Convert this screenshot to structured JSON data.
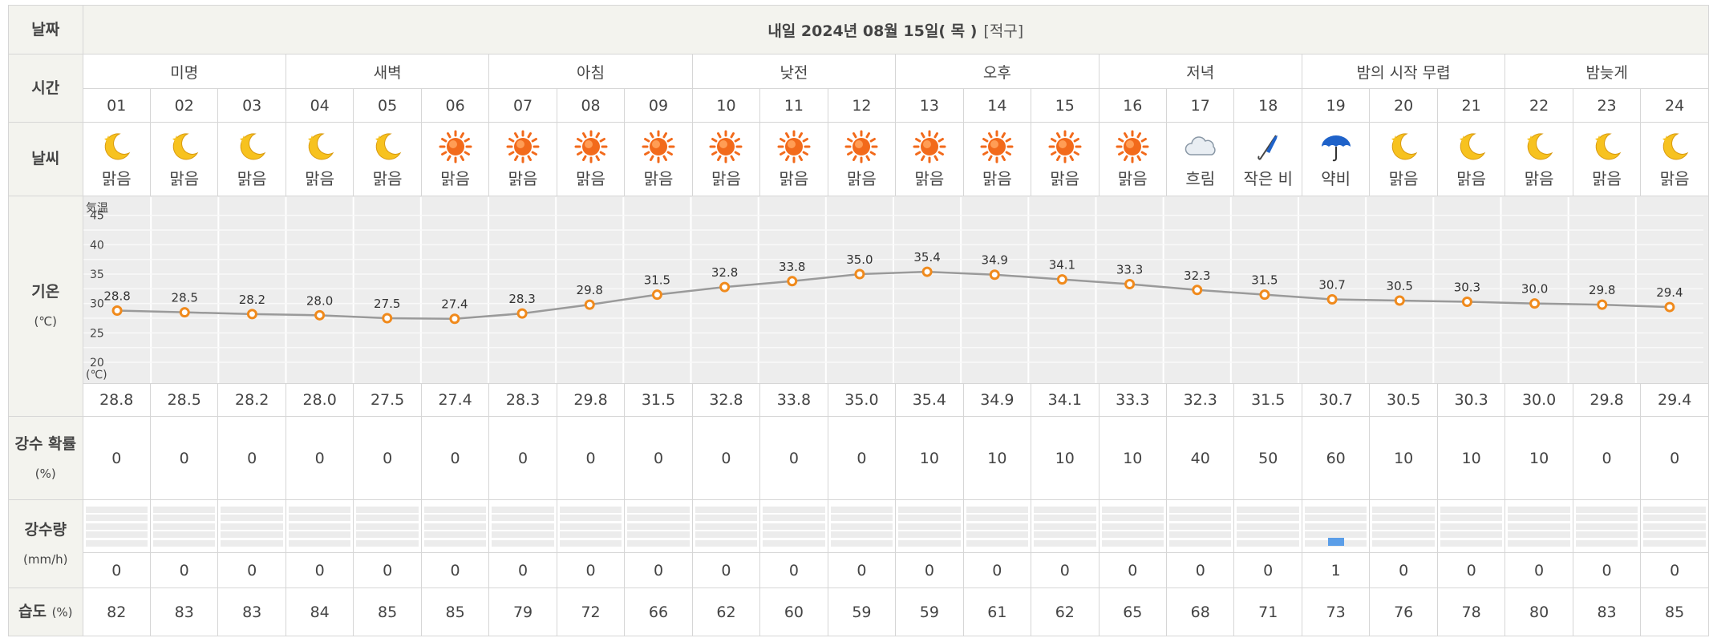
{
  "labels": {
    "date": "날짜",
    "time": "시간",
    "weather": "날씨",
    "temp": "기온",
    "temp_unit": "(℃)",
    "precip_prob": "강수 확률",
    "precip_prob_unit": "(%)",
    "precip_amount": "강수량",
    "precip_amount_unit": "(mm/h)",
    "humidity": "습도",
    "humidity_unit": "(%)"
  },
  "header": {
    "title": "내일 2024년 08월 15일( 목 )",
    "region": "[적구]"
  },
  "periods": [
    {
      "label": "미명"
    },
    {
      "label": "새벽"
    },
    {
      "label": "아침"
    },
    {
      "label": "낮전"
    },
    {
      "label": "오후"
    },
    {
      "label": "저녁"
    },
    {
      "label": "밤의 시작 무렵"
    },
    {
      "label": "밤늦게"
    }
  ],
  "hours": [
    "01",
    "02",
    "03",
    "04",
    "05",
    "06",
    "07",
    "08",
    "09",
    "10",
    "11",
    "12",
    "13",
    "14",
    "15",
    "16",
    "17",
    "18",
    "19",
    "20",
    "21",
    "22",
    "23",
    "24"
  ],
  "weather": [
    {
      "icon": "moon-icon",
      "text": "맑음"
    },
    {
      "icon": "moon-icon",
      "text": "맑음"
    },
    {
      "icon": "moon-icon",
      "text": "맑음"
    },
    {
      "icon": "moon-icon",
      "text": "맑음"
    },
    {
      "icon": "moon-icon",
      "text": "맑음"
    },
    {
      "icon": "sun-icon",
      "text": "맑음"
    },
    {
      "icon": "sun-icon",
      "text": "맑음"
    },
    {
      "icon": "sun-icon",
      "text": "맑음"
    },
    {
      "icon": "sun-icon",
      "text": "맑음"
    },
    {
      "icon": "sun-icon",
      "text": "맑음"
    },
    {
      "icon": "sun-icon",
      "text": "맑음"
    },
    {
      "icon": "sun-icon",
      "text": "맑음"
    },
    {
      "icon": "sun-icon",
      "text": "맑음"
    },
    {
      "icon": "sun-icon",
      "text": "맑음"
    },
    {
      "icon": "sun-icon",
      "text": "맑음"
    },
    {
      "icon": "sun-icon",
      "text": "맑음"
    },
    {
      "icon": "cloud-icon",
      "text": "흐림"
    },
    {
      "icon": "closed-umbrella-icon",
      "text": "작은 비"
    },
    {
      "icon": "umbrella-icon",
      "text": "약비"
    },
    {
      "icon": "moon-icon",
      "text": "맑음"
    },
    {
      "icon": "moon-icon",
      "text": "맑음"
    },
    {
      "icon": "moon-icon",
      "text": "맑음"
    },
    {
      "icon": "moon-icon",
      "text": "맑음"
    },
    {
      "icon": "moon-icon",
      "text": "맑음"
    }
  ],
  "chart_data": {
    "type": "line",
    "ylabel": "気温",
    "yunit": "(℃)",
    "ylim": [
      17,
      47
    ],
    "yticks": [
      20,
      25,
      30,
      35,
      40,
      45
    ],
    "x": [
      "01",
      "02",
      "03",
      "04",
      "05",
      "06",
      "07",
      "08",
      "09",
      "10",
      "11",
      "12",
      "13",
      "14",
      "15",
      "16",
      "17",
      "18",
      "19",
      "20",
      "21",
      "22",
      "23",
      "24"
    ],
    "series": [
      {
        "values": [
          28.8,
          28.5,
          28.2,
          28.0,
          27.5,
          27.4,
          28.3,
          29.8,
          31.5,
          32.8,
          33.8,
          35.0,
          35.4,
          34.9,
          34.1,
          33.3,
          32.3,
          31.5,
          30.7,
          30.5,
          30.3,
          30.0,
          29.8,
          29.4
        ]
      }
    ],
    "point_labels": [
      "28.8",
      "28.5",
      "28.2",
      "28.0",
      "27.5",
      "27.4",
      "28.3",
      "29.8",
      "31.5",
      "32.8",
      "33.8",
      "35.0",
      "35.4",
      "34.9",
      "34.1",
      "33.3",
      "32.3",
      "31.5",
      "30.7",
      "30.5",
      "30.3",
      "30.0",
      "29.8",
      "29.4"
    ],
    "grid": true,
    "line_color": "#9a9a9a",
    "marker_color": "#f08a1c"
  },
  "temps": [
    "28.8",
    "28.5",
    "28.2",
    "28.0",
    "27.5",
    "27.4",
    "28.3",
    "29.8",
    "31.5",
    "32.8",
    "33.8",
    "35.0",
    "35.4",
    "34.9",
    "34.1",
    "33.3",
    "32.3",
    "31.5",
    "30.7",
    "30.5",
    "30.3",
    "30.0",
    "29.8",
    "29.4"
  ],
  "precip_prob": [
    "0",
    "0",
    "0",
    "0",
    "0",
    "0",
    "0",
    "0",
    "0",
    "0",
    "0",
    "0",
    "10",
    "10",
    "10",
    "10",
    "40",
    "50",
    "60",
    "10",
    "10",
    "10",
    "0",
    "0"
  ],
  "precip_amount": [
    "0",
    "0",
    "0",
    "0",
    "0",
    "0",
    "0",
    "0",
    "0",
    "0",
    "0",
    "0",
    "0",
    "0",
    "0",
    "0",
    "0",
    "0",
    "1",
    "0",
    "0",
    "0",
    "0",
    "0"
  ],
  "precip_bar_max": 10,
  "humidity": [
    "82",
    "83",
    "83",
    "84",
    "85",
    "85",
    "79",
    "72",
    "66",
    "62",
    "60",
    "59",
    "59",
    "61",
    "62",
    "65",
    "68",
    "71",
    "73",
    "76",
    "78",
    "80",
    "83",
    "85"
  ],
  "colors": {
    "sun": "#f26a1b",
    "moon": "#f7c21f",
    "rain_bar": "#5b9ee8",
    "umbrella": "#1f62c9"
  }
}
